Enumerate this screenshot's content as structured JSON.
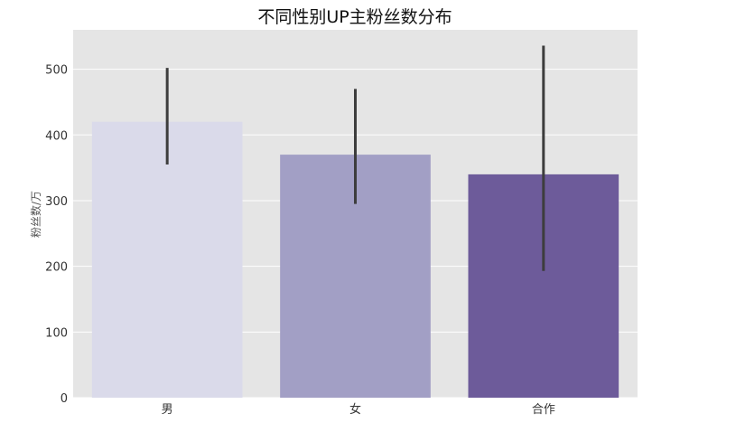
{
  "chart_data": {
    "type": "bar",
    "title": "不同性别UP主粉丝数分布",
    "xlabel": "",
    "ylabel": "粉丝数/万",
    "categories": [
      "男",
      "女",
      "合作"
    ],
    "values": [
      420,
      370,
      340
    ],
    "error_bars": [
      {
        "low": 355,
        "high": 502
      },
      {
        "low": 295,
        "high": 470
      },
      {
        "low": 193,
        "high": 536
      }
    ],
    "colors": [
      "#dadaea",
      "#a29fc5",
      "#6d5b9a"
    ],
    "error_bar_color": "#3d3d3d",
    "ylim": [
      0,
      560
    ],
    "yticks": [
      0,
      100,
      200,
      300,
      400,
      500
    ],
    "grid": true,
    "background": "#e5e5e5"
  }
}
